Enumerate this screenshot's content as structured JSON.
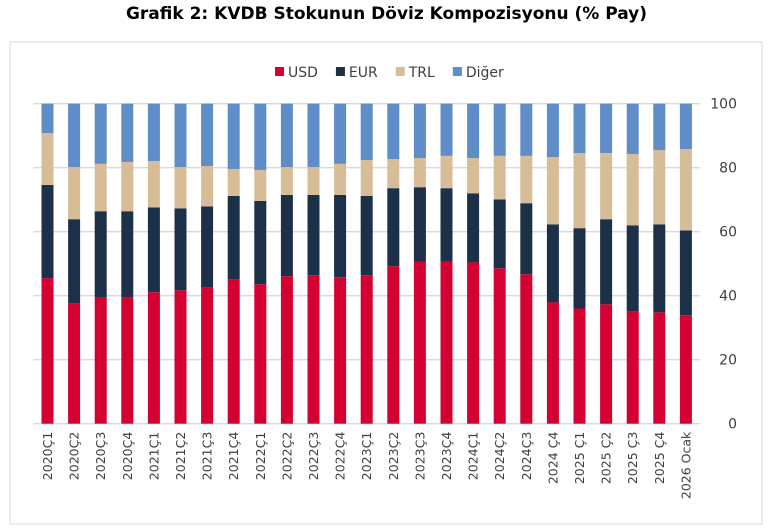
{
  "chart_data": {
    "type": "bar",
    "stacked": true,
    "title": "Grafik 2: KVDB Stokunun Döviz Kompozisyonu (% Pay)",
    "xlabel": "",
    "ylabel": "",
    "ylim": [
      0,
      100
    ],
    "yticks": [
      0,
      20,
      40,
      60,
      80,
      100
    ],
    "y_axis_side": "right",
    "grid": true,
    "legend_position": "top",
    "categories": [
      "2020Ç1",
      "2020Ç2",
      "2020Ç3",
      "2020Ç4",
      "2021Ç1",
      "2021Ç2",
      "2021Ç3",
      "2021Ç4",
      "2022Ç1",
      "2022Ç2",
      "2022Ç3",
      "2022Ç4",
      "2023Ç1",
      "2023Ç2",
      "2023Ç3",
      "2023Ç4",
      "2024Ç1",
      "2024Ç2",
      "2024Ç3",
      "2024 Ç4",
      "2025 Ç1",
      "2025 Ç2",
      "2025 Ç3",
      "2025 Ç4",
      "2026 Ocak"
    ],
    "series": [
      {
        "name": "USD",
        "color": "#d50032",
        "values": [
          45.5,
          37.6,
          39.6,
          39.6,
          41.1,
          41.7,
          42.6,
          45.1,
          43.6,
          46.1,
          46.4,
          45.8,
          46.4,
          49.2,
          50.7,
          50.7,
          50.4,
          48.6,
          46.7,
          37.9,
          36.0,
          37.3,
          35.1,
          34.8,
          33.9
        ]
      },
      {
        "name": "EUR",
        "color": "#1c3148",
        "values": [
          29.1,
          26.3,
          26.8,
          26.8,
          26.5,
          25.6,
          25.3,
          26.1,
          26.0,
          25.4,
          25.1,
          25.7,
          24.8,
          24.4,
          23.2,
          22.9,
          21.6,
          21.5,
          22.2,
          24.4,
          25.1,
          26.6,
          26.9,
          27.5,
          26.5
        ]
      },
      {
        "name": "TRL",
        "color": "#d6bd97",
        "values": [
          16.2,
          16.3,
          14.8,
          15.4,
          14.5,
          12.9,
          12.6,
          8.4,
          9.7,
          8.7,
          8.7,
          9.7,
          11.2,
          9.1,
          9.1,
          10.1,
          11.0,
          13.6,
          14.8,
          21.0,
          23.5,
          20.7,
          22.3,
          23.2,
          25.4
        ]
      },
      {
        "name": "Diğer",
        "color": "#5f8dc8",
        "values": [
          9.2,
          19.8,
          18.8,
          18.2,
          17.9,
          19.8,
          19.5,
          20.4,
          20.7,
          19.8,
          19.8,
          18.8,
          17.6,
          17.3,
          17.0,
          16.3,
          17.0,
          16.3,
          16.3,
          16.7,
          15.4,
          15.4,
          15.7,
          14.5,
          14.2
        ]
      }
    ]
  }
}
